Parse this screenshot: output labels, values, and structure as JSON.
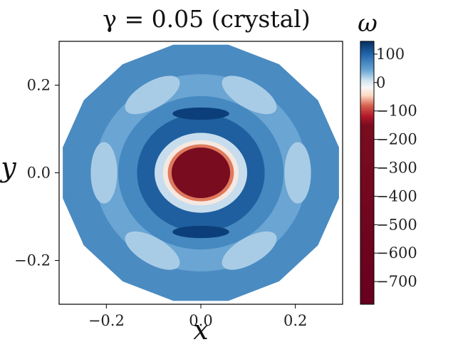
{
  "chart_data": {
    "type": "heatmap",
    "title": "γ = 0.05   (crystal)",
    "xlabel": "x",
    "ylabel": "y",
    "xlim": [
      -0.3,
      0.3
    ],
    "ylim": [
      -0.3,
      0.3
    ],
    "xticks": [
      {
        "value": -0.2,
        "label": "−0.2"
      },
      {
        "value": 0.0,
        "label": "0.0"
      },
      {
        "value": 0.2,
        "label": "0.2"
      }
    ],
    "yticks": [
      {
        "value": 0.2,
        "label": "0.2"
      },
      {
        "value": 0.0,
        "label": "0.0"
      },
      {
        "value": -0.2,
        "label": "−0.2"
      }
    ],
    "colorbar": {
      "label": "ω",
      "vmin": -780,
      "vmax": 145,
      "ticks": [
        {
          "value": 100,
          "label": "100"
        },
        {
          "value": 0,
          "label": "0"
        },
        {
          "value": -100,
          "label": "−100"
        },
        {
          "value": -200,
          "label": "−200"
        },
        {
          "value": -300,
          "label": "−300"
        },
        {
          "value": -400,
          "label": "−400"
        },
        {
          "value": -500,
          "label": "−500"
        },
        {
          "value": -600,
          "label": "−600"
        },
        {
          "value": -700,
          "label": "−700"
        }
      ]
    },
    "field_levels": [
      {
        "name": "domain-outer",
        "radius": 0.298,
        "value": 40,
        "color": "#4a8bc2"
      },
      {
        "name": "ring-light",
        "radius": 0.225,
        "value": 25,
        "color": "#6aa5d3"
      },
      {
        "name": "ring-mid",
        "radius": 0.175,
        "value": 45,
        "color": "#4688c0"
      },
      {
        "name": "ring-dark",
        "radius": 0.135,
        "value": 85,
        "color": "#1f5f9f"
      },
      {
        "name": "halo-pale",
        "radius": 0.098,
        "value": 15,
        "color": "#c7ddee"
      },
      {
        "name": "core-edge",
        "radius": 0.08,
        "value": -60,
        "color": "#f6e8e0"
      },
      {
        "name": "core-ring",
        "radius": 0.07,
        "value": -150,
        "color": "#de7a5e"
      },
      {
        "name": "core",
        "radius": 0.062,
        "value": -720,
        "color": "#7a0c1f"
      }
    ],
    "colormap": "RdBu"
  }
}
